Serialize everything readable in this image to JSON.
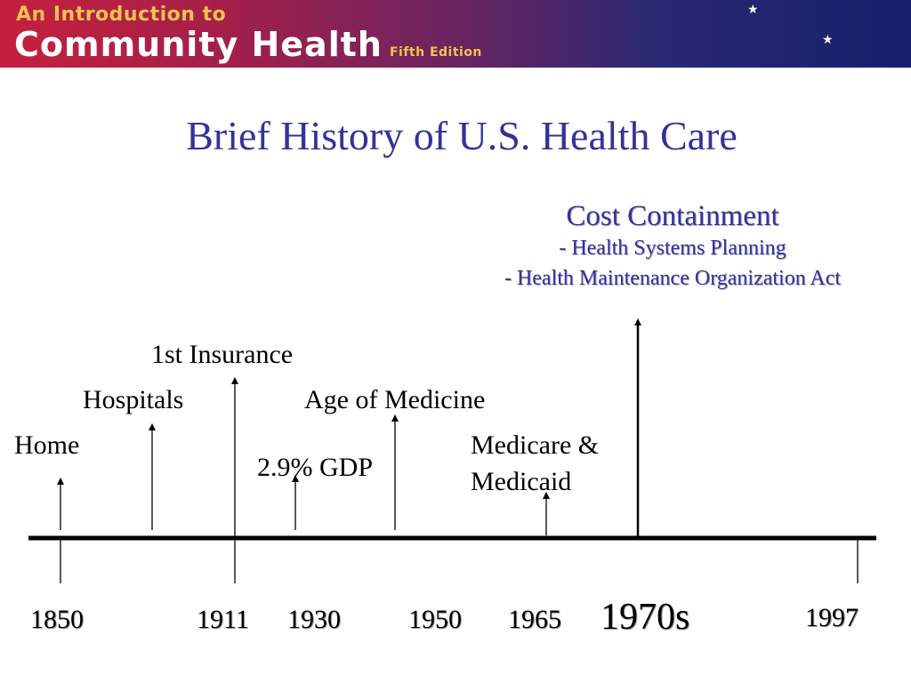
{
  "banner": {
    "line1": "An Introduction to",
    "line2": "Community Health",
    "edition": "Fifth Edition"
  },
  "title": "Brief History of U.S. Health Care",
  "cost_containment": {
    "heading": "Cost Containment",
    "items": [
      "- Health Systems Planning",
      "- Health Maintenance Organization Act"
    ]
  },
  "events": {
    "home": "Home",
    "hospitals": "Hospitals",
    "first_insurance": "1st Insurance",
    "gdp": "2.9% GDP",
    "age_of_medicine": "Age of Medicine",
    "medicare_line1": "Medicare &",
    "medicare_line2": "Medicaid"
  },
  "years": [
    "1850",
    "1911",
    "1930",
    "1950",
    "1965",
    "1970s",
    "1997"
  ],
  "colors": {
    "title": "#333399",
    "banner_start": "#c4203e",
    "banner_end": "#17206b",
    "banner_accent": "#f0c250"
  }
}
